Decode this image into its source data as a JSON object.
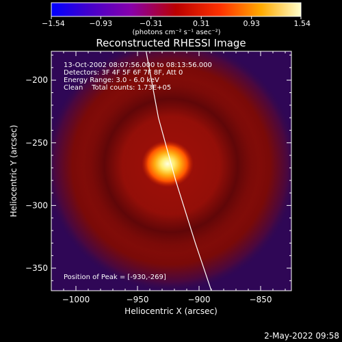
{
  "chart_data": {
    "type": "heatmap",
    "title": "Reconstructed RHESSI Image",
    "xlabel": "Heliocentric X (arcsec)",
    "ylabel": "Heliocentric Y (arcsec)",
    "xlim": [
      -1020,
      -825
    ],
    "ylim": [
      -368,
      -177
    ],
    "xticks": [
      -1000,
      -950,
      -900,
      -850
    ],
    "yticks": [
      -200,
      -250,
      -300,
      -350
    ],
    "xtick_labels": [
      "−1000",
      "−950",
      "−900",
      "−850"
    ],
    "ytick_labels": [
      "−200",
      "−250",
      "−300",
      "−350"
    ],
    "colorbar": {
      "min": -1.54,
      "max": 1.54,
      "ticks": [
        -1.54,
        -0.93,
        -0.31,
        0.31,
        0.93,
        1.54
      ],
      "tick_labels": [
        "−1.54",
        "−0.93",
        "−0.31",
        "0.31",
        "0.93",
        "1.54"
      ],
      "unit_label": "(photons cm⁻² s⁻¹ asec⁻²)"
    },
    "annotations": [
      "13-Oct-2002 08:07:56.000 to 08:13:56.000",
      "Detectors: 3F 4F 5F 6F 7F 8F, Att 0",
      "Energy Range: 3.0 - 6.0 keV",
      "Clean    Total counts: 1.73E+05"
    ],
    "peak_label": "Position of Peak = [-930,-269]",
    "peak": {
      "x": -930,
      "y": -269,
      "value": 1.54
    },
    "limb_curve": [
      {
        "x": -943,
        "y": -177
      },
      {
        "x": -933,
        "y": -230
      },
      {
        "x": -919,
        "y": -280
      },
      {
        "x": -903,
        "y": -330
      },
      {
        "x": -890,
        "y": -368
      }
    ],
    "grid": false
  },
  "footer": {
    "timestamp": "2-May-2022 09:58"
  }
}
